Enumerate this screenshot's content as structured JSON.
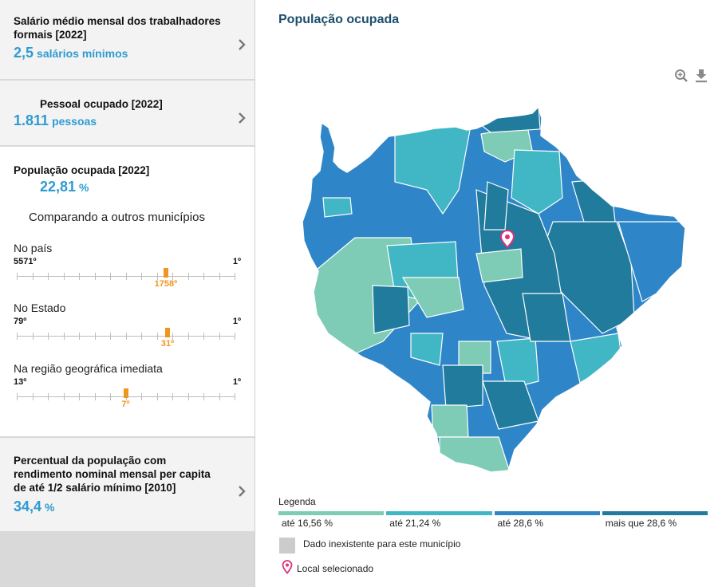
{
  "sidebar": {
    "salary": {
      "title_line1": "Salário médio mensal dos trabalhadores",
      "title_line2": "formais [2022]",
      "value": "2,5",
      "unit": "salários mínimos"
    },
    "staff": {
      "title": "Pessoal ocupado [2022]",
      "value": "1.811",
      "unit": "pessoas"
    },
    "occupied": {
      "title": "População ocupada [2022]",
      "value": "22,81",
      "unit": "%",
      "compare_heading": "Comparando a outros municípios",
      "rankings": [
        {
          "label": "No país",
          "min": "5571º",
          "max": "1º",
          "position": "1758º",
          "fraction": 0.6845
        },
        {
          "label": "No Estado",
          "min": "79º",
          "max": "1º",
          "position": "31º",
          "fraction": 0.6923
        },
        {
          "label": "Na região geográfica imediata",
          "min": "13º",
          "max": "1º",
          "position": "7º",
          "fraction": 0.5
        }
      ]
    },
    "income": {
      "title_line1": "Percentual da população com",
      "title_line2": "rendimento nominal mensal per capita",
      "title_line3": "de até 1/2 salário mínimo [2010]",
      "value": "34,4",
      "unit": "%"
    }
  },
  "main": {
    "title": "População ocupada",
    "tools": [
      "zoom-in-icon",
      "download-icon"
    ]
  },
  "legend": {
    "title": "Legenda",
    "classes": [
      {
        "label": "até 16,56 %",
        "color": "#7ecbb6"
      },
      {
        "label": "até 21,24 %",
        "color": "#41b6c4"
      },
      {
        "label": "até 28,6 %",
        "color": "#2e86c8"
      },
      {
        "label": "mais que 28,6 %",
        "color": "#217b9c"
      }
    ],
    "no_data": "Dado inexistente para este município",
    "no_data_color": "#cccccc",
    "selected": "Local selecionado",
    "selected_color": "#e0307a"
  }
}
